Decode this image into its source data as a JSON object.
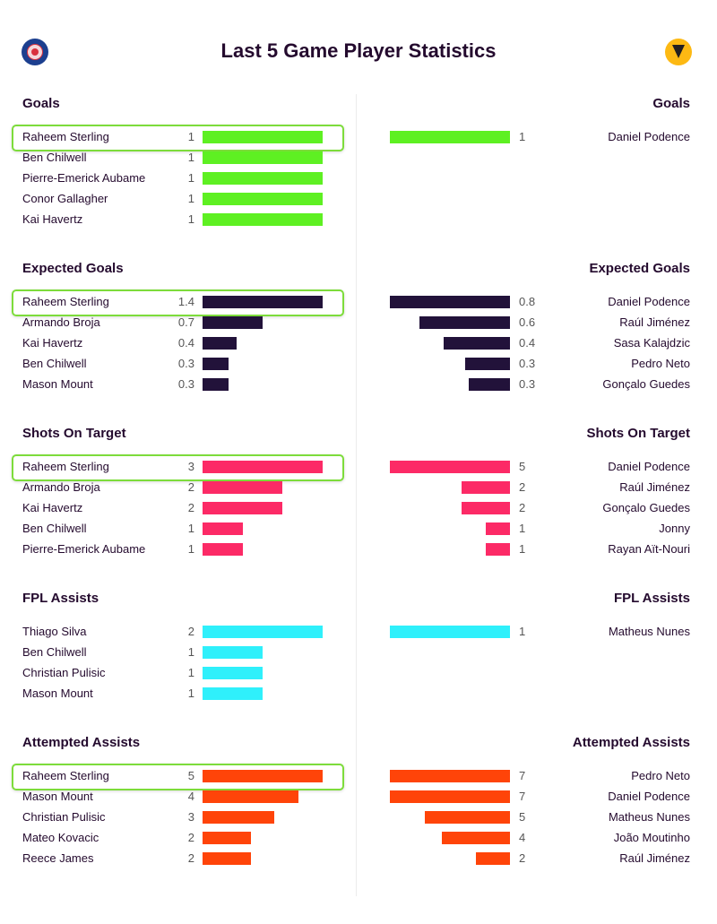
{
  "title": "Last 5 Game Player Statistics",
  "icons": {
    "left": "chelsea-crest-icon",
    "right": "wolves-crest-icon"
  },
  "chart_data": [
    {
      "type": "bar",
      "title": "Goals",
      "color": "#5ef022",
      "max": 1,
      "left": [
        {
          "player": "Raheem Sterling",
          "value": 1,
          "label": "1"
        },
        {
          "player": "Ben Chilwell",
          "value": 1,
          "label": "1"
        },
        {
          "player": "Pierre-Emerick Aubame",
          "value": 1,
          "label": "1"
        },
        {
          "player": "Conor Gallagher",
          "value": 1,
          "label": "1"
        },
        {
          "player": "Kai Havertz",
          "value": 1,
          "label": "1"
        }
      ],
      "right": [
        {
          "player": "Daniel Podence",
          "value": 1,
          "label": "1"
        }
      ],
      "highlight_first": true
    },
    {
      "type": "bar",
      "title": "Expected Goals",
      "color": "#22123a",
      "max": 1.4,
      "left": [
        {
          "player": "Raheem Sterling",
          "value": 1.4,
          "label": "1.4"
        },
        {
          "player": "Armando Broja",
          "value": 0.7,
          "label": "0.7"
        },
        {
          "player": "Kai Havertz",
          "value": 0.4,
          "label": "0.4"
        },
        {
          "player": "Ben Chilwell",
          "value": 0.3,
          "label": "0.3"
        },
        {
          "player": "Mason Mount",
          "value": 0.3,
          "label": "0.3"
        }
      ],
      "right": [
        {
          "player": "Daniel Podence",
          "value": 1.4,
          "label": "0.8"
        },
        {
          "player": "Raúl Jiménez",
          "value": 1.06,
          "label": "0.6"
        },
        {
          "player": "Sasa Kalajdzic",
          "value": 0.77,
          "label": "0.4"
        },
        {
          "player": "Pedro Neto",
          "value": 0.52,
          "label": "0.3"
        },
        {
          "player": "Gonçalo Guedes",
          "value": 0.48,
          "label": "0.3"
        }
      ],
      "highlight_first": true
    },
    {
      "type": "bar",
      "title": "Shots On Target",
      "color": "#fc2a66",
      "max": 3,
      "left": [
        {
          "player": "Raheem Sterling",
          "value": 3,
          "label": "3"
        },
        {
          "player": "Armando Broja",
          "value": 2,
          "label": "2"
        },
        {
          "player": "Kai Havertz",
          "value": 2,
          "label": "2"
        },
        {
          "player": "Ben Chilwell",
          "value": 1,
          "label": "1"
        },
        {
          "player": "Pierre-Emerick Aubame",
          "value": 1,
          "label": "1"
        }
      ],
      "right": [
        {
          "player": "Daniel Podence",
          "value": 3,
          "label": "5"
        },
        {
          "player": "Raúl Jiménez",
          "value": 1.2,
          "label": "2"
        },
        {
          "player": "Gonçalo Guedes",
          "value": 1.2,
          "label": "2"
        },
        {
          "player": "Jonny",
          "value": 0.6,
          "label": "1"
        },
        {
          "player": "Rayan Aït-Nouri",
          "value": 0.6,
          "label": "1"
        }
      ],
      "highlight_first": true
    },
    {
      "type": "bar",
      "title": "FPL Assists",
      "color": "#2ff0fb",
      "max": 2,
      "left": [
        {
          "player": "Thiago Silva",
          "value": 2,
          "label": "2"
        },
        {
          "player": "Ben Chilwell",
          "value": 1,
          "label": "1"
        },
        {
          "player": "Christian Pulisic",
          "value": 1,
          "label": "1"
        },
        {
          "player": "Mason Mount",
          "value": 1,
          "label": "1"
        }
      ],
      "right": [
        {
          "player": "Matheus Nunes",
          "value": 2,
          "label": "1"
        }
      ],
      "highlight_first": false
    },
    {
      "type": "bar",
      "title": "Attempted Assists",
      "color": "#ff4409",
      "max": 5,
      "left": [
        {
          "player": "Raheem Sterling",
          "value": 5,
          "label": "5"
        },
        {
          "player": "Mason Mount",
          "value": 4,
          "label": "4"
        },
        {
          "player": "Christian Pulisic",
          "value": 3,
          "label": "3"
        },
        {
          "player": "Mateo Kovacic",
          "value": 2,
          "label": "2"
        },
        {
          "player": "Reece James",
          "value": 2,
          "label": "2"
        }
      ],
      "right": [
        {
          "player": "Pedro Neto",
          "value": 5,
          "label": "7"
        },
        {
          "player": "Daniel Podence",
          "value": 5,
          "label": "7"
        },
        {
          "player": "Matheus Nunes",
          "value": 3.56,
          "label": "5"
        },
        {
          "player": "João Moutinho",
          "value": 2.85,
          "label": "4"
        },
        {
          "player": "Raúl Jiménez",
          "value": 1.43,
          "label": "2"
        }
      ],
      "highlight_first": true
    }
  ]
}
